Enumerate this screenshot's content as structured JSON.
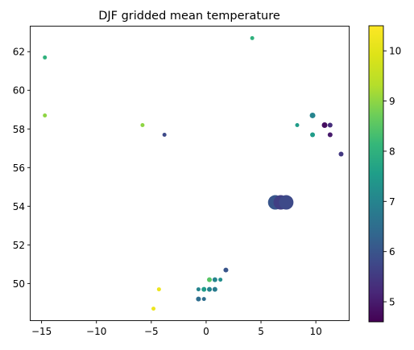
{
  "chart_data": {
    "type": "scatter",
    "title": "DJF gridded mean temperature",
    "xlabel": "",
    "ylabel": "",
    "xlim": [
      -16,
      13
    ],
    "ylim": [
      48.1,
      63.3
    ],
    "xticks": [
      -15,
      -10,
      -5,
      0,
      5,
      10
    ],
    "yticks": [
      50,
      52,
      54,
      56,
      58,
      60,
      62
    ],
    "grid": false,
    "colorbar": {
      "colormap": "viridis",
      "range": [
        4.6,
        10.5
      ],
      "ticks": [
        5,
        6,
        7,
        8,
        9,
        10
      ]
    },
    "points": [
      {
        "x": -14.7,
        "y": 61.7,
        "value": 8.0,
        "size": 2.5
      },
      {
        "x": -14.7,
        "y": 58.7,
        "value": 9.0,
        "size": 2.5
      },
      {
        "x": -5.8,
        "y": 58.2,
        "value": 9.0,
        "size": 2.5
      },
      {
        "x": -3.8,
        "y": 57.7,
        "value": 5.8,
        "size": 2.5
      },
      {
        "x": 4.2,
        "y": 62.7,
        "value": 8.0,
        "size": 2.5
      },
      {
        "x": 8.3,
        "y": 58.2,
        "value": 7.5,
        "size": 2.5
      },
      {
        "x": 9.7,
        "y": 58.7,
        "value": 7.0,
        "size": 3.5
      },
      {
        "x": 9.7,
        "y": 57.7,
        "value": 7.5,
        "size": 3.0
      },
      {
        "x": 10.8,
        "y": 58.2,
        "value": 4.8,
        "size": 3.5
      },
      {
        "x": 11.3,
        "y": 58.2,
        "value": 5.3,
        "size": 3.0
      },
      {
        "x": 11.3,
        "y": 57.7,
        "value": 5.0,
        "size": 3.0
      },
      {
        "x": 12.3,
        "y": 56.7,
        "value": 5.5,
        "size": 3.0
      },
      {
        "x": 6.3,
        "y": 54.2,
        "value": 6.0,
        "size": 9
      },
      {
        "x": 6.8,
        "y": 54.2,
        "value": 5.6,
        "size": 9
      },
      {
        "x": 7.3,
        "y": 54.2,
        "value": 5.8,
        "size": 9
      },
      {
        "x": 1.8,
        "y": 50.7,
        "value": 6.0,
        "size": 3.0
      },
      {
        "x": 0.3,
        "y": 50.2,
        "value": 8.5,
        "size": 3.0
      },
      {
        "x": 0.8,
        "y": 50.2,
        "value": 7.0,
        "size": 3.0
      },
      {
        "x": 1.3,
        "y": 50.2,
        "value": 7.2,
        "size": 2.5
      },
      {
        "x": -0.7,
        "y": 49.7,
        "value": 7.0,
        "size": 2.5
      },
      {
        "x": -0.2,
        "y": 49.7,
        "value": 7.5,
        "size": 3.0
      },
      {
        "x": 0.3,
        "y": 49.7,
        "value": 7.0,
        "size": 3.0
      },
      {
        "x": 0.8,
        "y": 49.7,
        "value": 6.8,
        "size": 3.0
      },
      {
        "x": -4.3,
        "y": 49.7,
        "value": 10.2,
        "size": 2.5
      },
      {
        "x": -0.7,
        "y": 49.2,
        "value": 6.5,
        "size": 3.0
      },
      {
        "x": -0.2,
        "y": 49.2,
        "value": 6.5,
        "size": 2.5
      },
      {
        "x": -4.8,
        "y": 48.7,
        "value": 10.2,
        "size": 2.5
      }
    ]
  }
}
